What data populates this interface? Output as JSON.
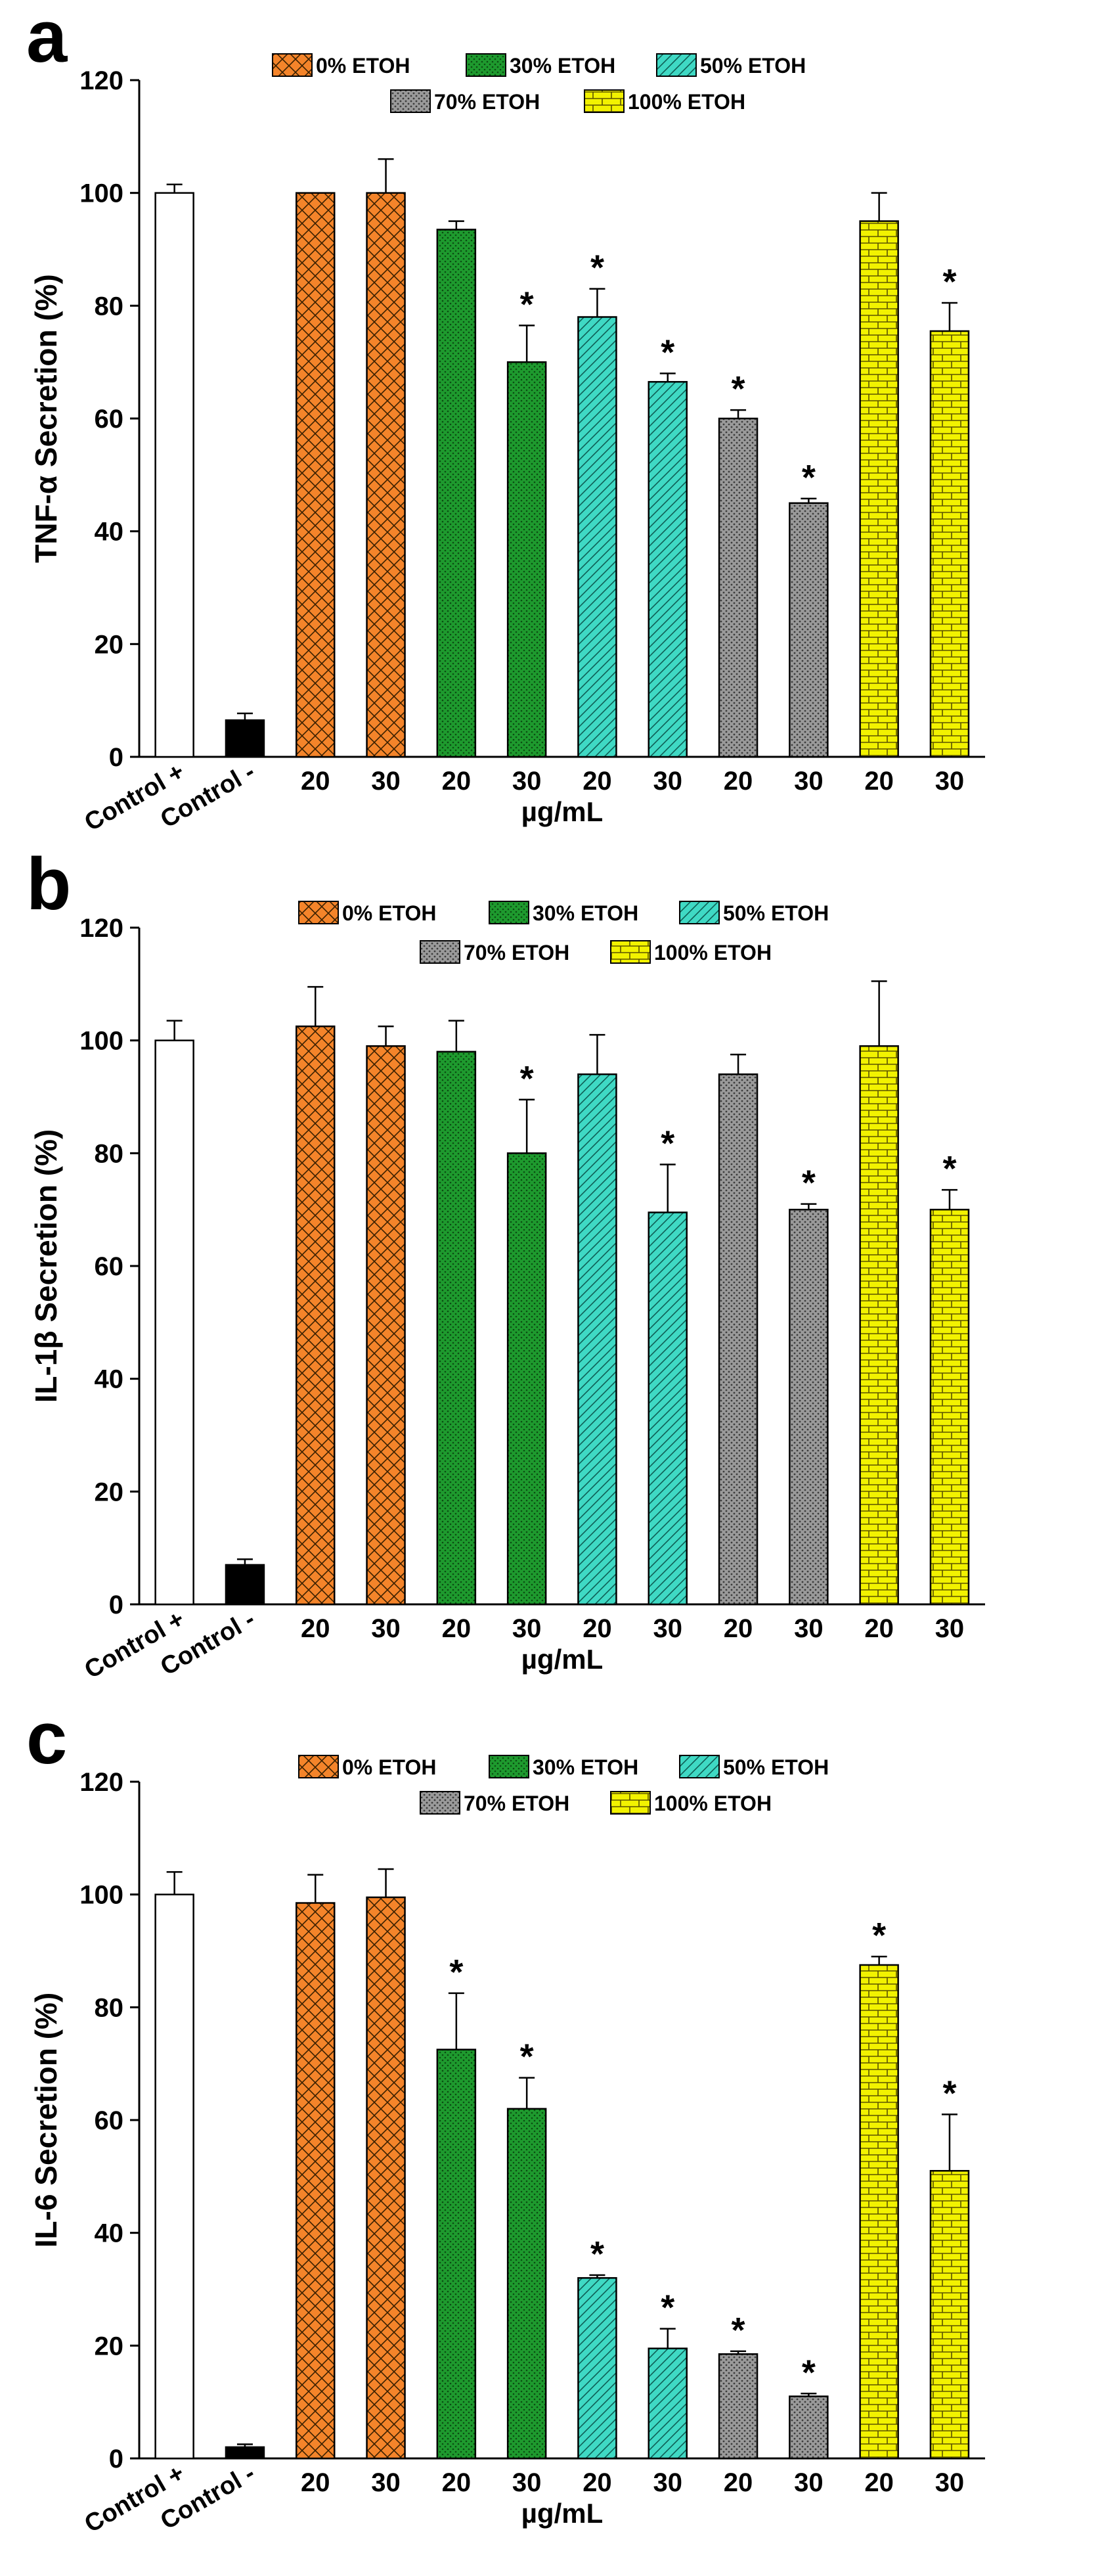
{
  "figure": {
    "xlabel": "µg/mL",
    "categories": [
      "Control +",
      "Control -",
      "20",
      "30",
      "20",
      "30",
      "20",
      "30",
      "20",
      "30",
      "20",
      "30"
    ],
    "legend": [
      {
        "label": "0% ETOH",
        "color": "#F4842A",
        "pattern": "crosshatch"
      },
      {
        "label": "30% ETOH",
        "color": "#1E9A2E",
        "pattern": "dots"
      },
      {
        "label": "50% ETOH",
        "color": "#3FD9C4",
        "pattern": "diagonal"
      },
      {
        "label": "70% ETOH",
        "color": "#9A9A9A",
        "pattern": "dots"
      },
      {
        "label": "100% ETOH",
        "color": "#F2F200",
        "pattern": "brick"
      }
    ],
    "control_colors": {
      "positive": "#FFFFFF",
      "negative": "#000000"
    }
  },
  "chart_data": [
    {
      "panel": "a",
      "type": "bar",
      "title": "",
      "xlabel": "µg/mL",
      "ylabel": "TNF-α Secretion (%)",
      "ylim": [
        0,
        120
      ],
      "yticks": [
        0,
        20,
        40,
        60,
        80,
        100,
        120
      ],
      "categories": [
        "Control +",
        "Control -",
        "20",
        "30",
        "20",
        "30",
        "20",
        "30",
        "20",
        "30",
        "20",
        "30"
      ],
      "groups": [
        "control",
        "control",
        "0% ETOH",
        "0% ETOH",
        "30% ETOH",
        "30% ETOH",
        "50% ETOH",
        "50% ETOH",
        "70% ETOH",
        "70% ETOH",
        "100% ETOH",
        "100% ETOH"
      ],
      "values": [
        100,
        6.5,
        100,
        100,
        93.5,
        70,
        78,
        66.5,
        60,
        45,
        95,
        75.5
      ],
      "errors": [
        1.5,
        1.2,
        0,
        6,
        1.5,
        6.5,
        5,
        1.5,
        1.5,
        0.8,
        5,
        5
      ],
      "significant": [
        false,
        false,
        false,
        false,
        false,
        true,
        true,
        true,
        true,
        true,
        false,
        true
      ],
      "significance_marker": "*"
    },
    {
      "panel": "b",
      "type": "bar",
      "title": "",
      "xlabel": "µg/mL",
      "ylabel": "IL-1β Secretion (%)",
      "ylim": [
        0,
        120
      ],
      "yticks": [
        0,
        20,
        40,
        60,
        80,
        100,
        120
      ],
      "categories": [
        "Control +",
        "Control -",
        "20",
        "30",
        "20",
        "30",
        "20",
        "30",
        "20",
        "30",
        "20",
        "30"
      ],
      "groups": [
        "control",
        "control",
        "0% ETOH",
        "0% ETOH",
        "30% ETOH",
        "30% ETOH",
        "50% ETOH",
        "50% ETOH",
        "70% ETOH",
        "70% ETOH",
        "100% ETOH",
        "100% ETOH"
      ],
      "values": [
        100,
        7,
        102.5,
        99,
        98,
        80,
        94,
        69.5,
        94,
        70,
        99,
        70
      ],
      "errors": [
        3.5,
        1,
        7,
        3.5,
        5.5,
        9.5,
        7,
        8.5,
        3.5,
        1,
        11.5,
        3.5
      ],
      "significant": [
        false,
        false,
        false,
        false,
        false,
        true,
        false,
        true,
        false,
        true,
        false,
        true
      ],
      "significance_marker": "*"
    },
    {
      "panel": "c",
      "type": "bar",
      "title": "",
      "xlabel": "µg/mL",
      "ylabel": "IL-6 Secretion (%)",
      "ylim": [
        0,
        120
      ],
      "yticks": [
        0,
        20,
        40,
        60,
        80,
        100,
        120
      ],
      "categories": [
        "Control +",
        "Control -",
        "20",
        "30",
        "20",
        "30",
        "20",
        "30",
        "20",
        "30",
        "20",
        "30"
      ],
      "groups": [
        "control",
        "control",
        "0% ETOH",
        "0% ETOH",
        "30% ETOH",
        "30% ETOH",
        "50% ETOH",
        "50% ETOH",
        "70% ETOH",
        "70% ETOH",
        "100% ETOH",
        "100% ETOH"
      ],
      "values": [
        100,
        2,
        98.5,
        99.5,
        72.5,
        62,
        32,
        19.5,
        18.5,
        11,
        87.5,
        51
      ],
      "errors": [
        4,
        0.5,
        5,
        5,
        10,
        5.5,
        0.5,
        3.5,
        0.5,
        0.5,
        1.5,
        10
      ],
      "significant": [
        false,
        false,
        false,
        false,
        true,
        true,
        true,
        true,
        true,
        true,
        true,
        true
      ],
      "significance_marker": "*"
    }
  ]
}
